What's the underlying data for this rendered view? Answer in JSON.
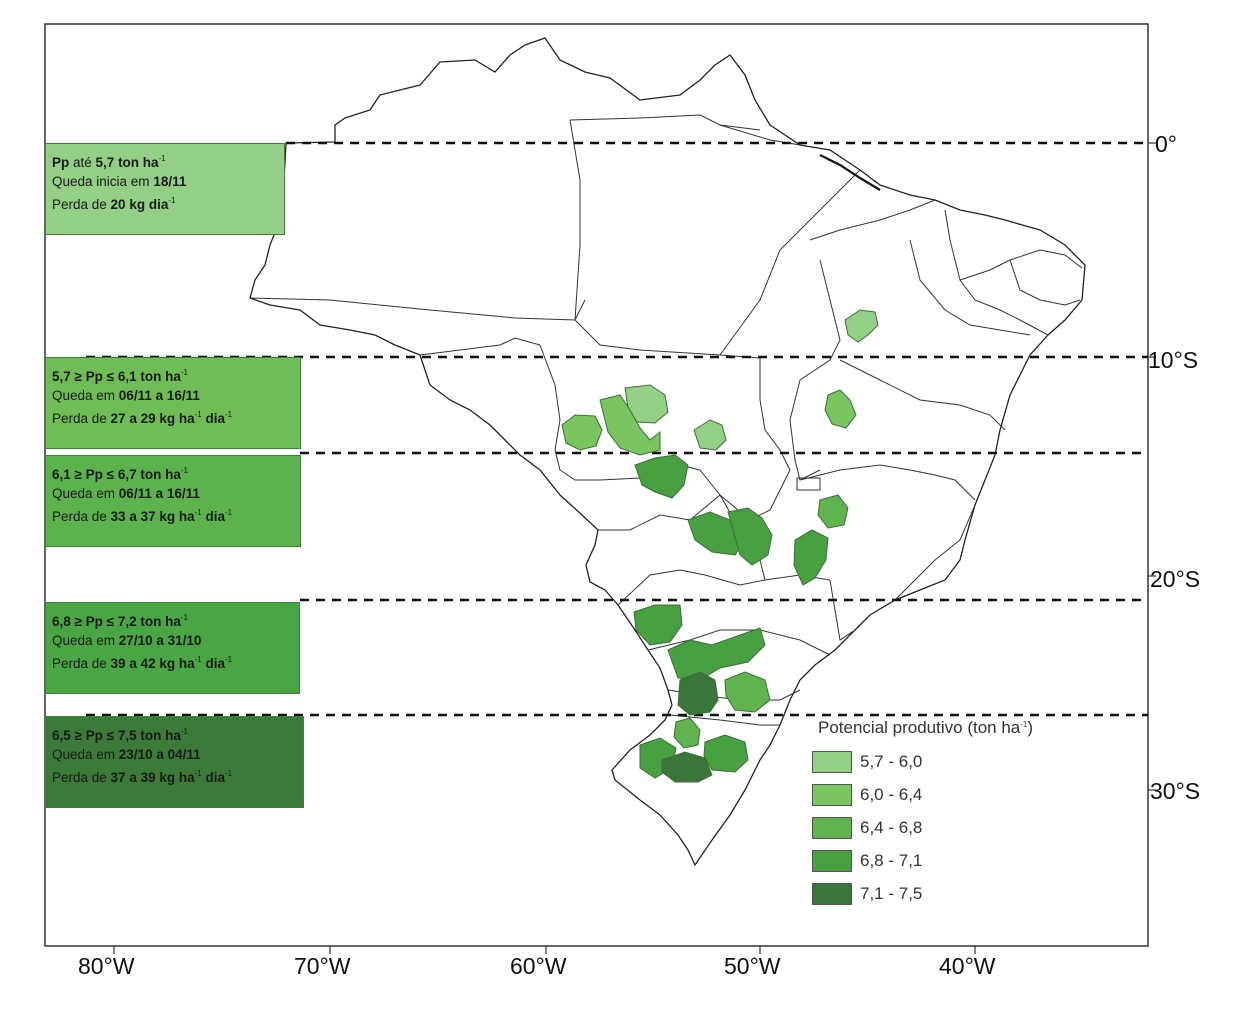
{
  "map": {
    "latitude_labels": [
      "0°",
      "10°S",
      "20°S",
      "30°S"
    ],
    "longitude_labels": [
      "80°W",
      "70°W",
      "60°W",
      "50°W",
      "40°W"
    ]
  },
  "zones": [
    {
      "color": "#93cf84",
      "line1_a": "Pp",
      "line1_b": " até ",
      "line1_c": "5,7 ton ha",
      "line1_sup": "-1",
      "line2_a": "Queda inicia em ",
      "line2_b": "18/11",
      "line3_a": "Perda de ",
      "line3_b": "20 kg dia",
      "line3_sup": "-1"
    },
    {
      "color": "#6fbd57",
      "line1_a": "5,7  ≥ Pp ≤ 6,1 ton ha",
      "line1_sup": "-1",
      "line2_a": "Queda em ",
      "line2_b": "06/11 a 16/11",
      "line3_a": "Perda de ",
      "line3_b": "27 a 29 kg ha",
      "line3_sup": "-1",
      "line3_c": " dia",
      "line3_sup2": "-1"
    },
    {
      "color": "#5cb34d",
      "line1_a": "6,1  ≥ Pp ≤ 6,7 ton ha",
      "line1_sup": "-1",
      "line2_a": "Queda em ",
      "line2_b": "06/11 a 16/11",
      "line3_a": "Perda de ",
      "line3_b": "33 a 37 kg ha",
      "line3_sup": "-1",
      "line3_c": " dia",
      "line3_sup2": "-1"
    },
    {
      "color": "#4aa544",
      "line1_a": "6,8  ≥ Pp ≤ 7,2 ton ha",
      "line1_sup": "-1",
      "line2_a": "Queda em ",
      "line2_b": "27/10 a 31/10",
      "line3_a": "Perda de ",
      "line3_b": "39 a 42 kg ha",
      "line3_sup": "-1",
      "line3_c": " dia",
      "line3_sup2": "-1"
    },
    {
      "color": "#3c7a3a",
      "line1_a": "6,5  ≥ Pp ≤ 7,5 ton ha",
      "line1_sup": "-1",
      "line2_a": "Queda em ",
      "line2_b": "23/10 a 04/11",
      "line3_a": "Perda de ",
      "line3_b": "37 a 39 kg ha",
      "line3_sup": "-1",
      "line3_c": " dia",
      "line3_sup2": "-1"
    }
  ],
  "legend": {
    "title": "Potencial produtivo (ton ha",
    "title_sup": "-1",
    "title_end": ")",
    "items": [
      {
        "label": "5,7 - 6,0",
        "color": "#93cf84"
      },
      {
        "label": "6,0 - 6,4",
        "color": "#79c55f"
      },
      {
        "label": "6,4 - 6,8",
        "color": "#5fb450"
      },
      {
        "label": "6,8 - 7,1",
        "color": "#48a141"
      },
      {
        "label": "7,1 - 7,5",
        "color": "#3a7539"
      }
    ]
  }
}
